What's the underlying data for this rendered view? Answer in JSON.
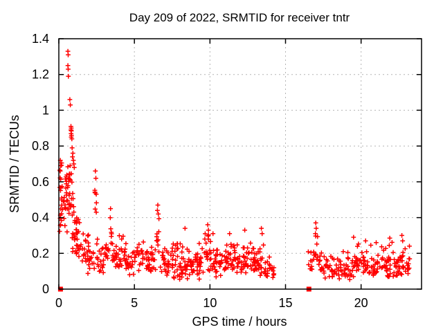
{
  "colors": {
    "marker": "#ff0000",
    "grid": "#b4b4b4",
    "frame": "#000000",
    "text": "#000000",
    "background": "#ffffff"
  },
  "chart_data": {
    "type": "scatter",
    "title": "Day 209 of 2022, SRMTID for receiver tntr",
    "xlabel": "GPS time / hours",
    "ylabel": "SRMTID / TECUs",
    "xlim": [
      0,
      24
    ],
    "ylim": [
      0,
      1.4
    ],
    "xtick_values": [
      0,
      5,
      10,
      15,
      20
    ],
    "xtick_labels": [
      "0",
      "5",
      "10",
      "15",
      "20"
    ],
    "ytick_values": [
      0,
      0.2,
      0.4,
      0.6,
      0.8,
      1.0,
      1.2,
      1.4
    ],
    "ytick_labels": [
      "0",
      "0.2",
      "0.4",
      "0.6",
      "0.8",
      "1",
      "1.2",
      "1.4"
    ],
    "grid": true,
    "grid_style": "dashed",
    "legend": "none",
    "seed": 7,
    "series": [
      {
        "name": "SRMTID",
        "marker": "plus",
        "color": "#ff0000",
        "data_gap_hours": [
          14.3,
          16.5
        ],
        "peak_points": [
          [
            0.6,
            1.33
          ],
          [
            0.62,
            1.31
          ],
          [
            0.6,
            1.25
          ],
          [
            0.62,
            1.23
          ],
          [
            0.63,
            1.19
          ],
          [
            0.73,
            1.06
          ],
          [
            0.76,
            1.03
          ],
          [
            0.8,
            0.91
          ],
          [
            0.82,
            0.9
          ],
          [
            0.8,
            0.89
          ],
          [
            0.83,
            0.885
          ],
          [
            0.81,
            0.87
          ],
          [
            0.84,
            0.86
          ],
          [
            0.82,
            0.85
          ],
          [
            0.86,
            0.84
          ],
          [
            0.88,
            0.79
          ],
          [
            0.93,
            0.76
          ],
          [
            0.9,
            0.74
          ],
          [
            0.96,
            0.72
          ],
          [
            0.99,
            0.7
          ],
          [
            1.02,
            0.68
          ],
          [
            0.1,
            0.72
          ],
          [
            0.12,
            0.69
          ],
          [
            0.09,
            0.66
          ],
          [
            2.42,
            0.66
          ],
          [
            2.45,
            0.62
          ],
          [
            3.42,
            0.45
          ],
          [
            6.55,
            0.47
          ],
          [
            6.52,
            0.44
          ],
          [
            6.58,
            0.42
          ],
          [
            8.35,
            0.34
          ],
          [
            9.85,
            0.36
          ],
          [
            9.9,
            0.33
          ],
          [
            10.2,
            0.31
          ],
          [
            11.3,
            0.31
          ],
          [
            12.3,
            0.33
          ],
          [
            13.4,
            0.34
          ],
          [
            13.45,
            0.31
          ],
          [
            17.0,
            0.37
          ],
          [
            17.03,
            0.34
          ],
          [
            16.98,
            0.31
          ],
          [
            19.5,
            0.29
          ],
          [
            20.3,
            0.27
          ],
          [
            21.0,
            0.26
          ],
          [
            21.9,
            0.285
          ],
          [
            22.7,
            0.3
          ],
          [
            22.75,
            0.27
          ],
          [
            23.2,
            0.24
          ]
        ],
        "band_profile": {
          "columns": [
            "t_start",
            "t_end",
            "count",
            "y_min",
            "y_mode",
            "y_max"
          ],
          "bins": [
            [
              0.05,
              0.3,
              16,
              0.26,
              0.42,
              0.66
            ],
            [
              0.05,
              0.25,
              6,
              0.55,
              0.63,
              0.73
            ],
            [
              0.3,
              0.6,
              20,
              0.3,
              0.48,
              0.68
            ],
            [
              0.5,
              0.85,
              12,
              0.52,
              0.6,
              0.7
            ],
            [
              0.6,
              1.0,
              14,
              0.33,
              0.45,
              0.62
            ],
            [
              0.85,
              1.25,
              16,
              0.2,
              0.3,
              0.5
            ],
            [
              1.0,
              1.5,
              18,
              0.12,
              0.2,
              0.42
            ],
            [
              1.5,
              2.0,
              22,
              0.08,
              0.16,
              0.34
            ],
            [
              2.0,
              2.35,
              12,
              0.08,
              0.15,
              0.3
            ],
            [
              2.36,
              2.5,
              7,
              0.4,
              0.5,
              0.64
            ],
            [
              2.5,
              3.0,
              20,
              0.07,
              0.14,
              0.3
            ],
            [
              3.0,
              3.35,
              12,
              0.1,
              0.17,
              0.33
            ],
            [
              3.3,
              3.55,
              7,
              0.22,
              0.3,
              0.44
            ],
            [
              3.55,
              4.0,
              20,
              0.08,
              0.14,
              0.28
            ],
            [
              4.0,
              4.5,
              20,
              0.09,
              0.16,
              0.33
            ],
            [
              4.5,
              5.0,
              18,
              0.07,
              0.13,
              0.26
            ],
            [
              5.0,
              5.6,
              20,
              0.08,
              0.14,
              0.3
            ],
            [
              5.6,
              6.1,
              18,
              0.06,
              0.12,
              0.24
            ],
            [
              6.1,
              6.45,
              12,
              0.08,
              0.13,
              0.26
            ],
            [
              6.45,
              6.7,
              9,
              0.18,
              0.28,
              0.44
            ],
            [
              6.7,
              7.1,
              14,
              0.07,
              0.13,
              0.26
            ],
            [
              7.1,
              7.6,
              20,
              0.05,
              0.12,
              0.26
            ],
            [
              7.6,
              8.1,
              22,
              0.04,
              0.12,
              0.3
            ],
            [
              8.1,
              8.6,
              22,
              0.04,
              0.11,
              0.3
            ],
            [
              8.6,
              9.1,
              20,
              0.03,
              0.1,
              0.24
            ],
            [
              9.1,
              9.6,
              20,
              0.05,
              0.12,
              0.27
            ],
            [
              9.6,
              10.1,
              22,
              0.07,
              0.15,
              0.33
            ],
            [
              10.1,
              10.6,
              20,
              0.06,
              0.13,
              0.28
            ],
            [
              10.6,
              11.1,
              20,
              0.05,
              0.12,
              0.26
            ],
            [
              11.1,
              11.6,
              20,
              0.07,
              0.14,
              0.3
            ],
            [
              11.6,
              12.1,
              20,
              0.06,
              0.13,
              0.27
            ],
            [
              12.1,
              12.6,
              22,
              0.07,
              0.14,
              0.3
            ],
            [
              12.6,
              13.1,
              20,
              0.06,
              0.13,
              0.28
            ],
            [
              13.1,
              13.6,
              18,
              0.06,
              0.13,
              0.3
            ],
            [
              13.6,
              14.05,
              15,
              0.05,
              0.11,
              0.22
            ],
            [
              14.05,
              14.3,
              7,
              0.05,
              0.1,
              0.17
            ],
            [
              16.5,
              16.85,
              9,
              0.07,
              0.13,
              0.24
            ],
            [
              16.85,
              17.15,
              10,
              0.12,
              0.2,
              0.34
            ],
            [
              17.15,
              17.6,
              15,
              0.06,
              0.12,
              0.22
            ],
            [
              17.6,
              18.2,
              20,
              0.04,
              0.1,
              0.2
            ],
            [
              18.2,
              18.8,
              20,
              0.04,
              0.1,
              0.2
            ],
            [
              18.8,
              19.4,
              20,
              0.05,
              0.11,
              0.22
            ],
            [
              19.4,
              20.0,
              22,
              0.05,
              0.12,
              0.27
            ],
            [
              20.0,
              20.6,
              20,
              0.05,
              0.11,
              0.24
            ],
            [
              20.6,
              21.2,
              20,
              0.04,
              0.1,
              0.25
            ],
            [
              21.2,
              21.8,
              20,
              0.06,
              0.12,
              0.25
            ],
            [
              21.8,
              22.4,
              22,
              0.05,
              0.12,
              0.27
            ],
            [
              22.4,
              23.0,
              22,
              0.06,
              0.13,
              0.28
            ],
            [
              23.0,
              23.3,
              10,
              0.08,
              0.13,
              0.23
            ]
          ]
        }
      },
      {
        "name": "zero line markers",
        "marker": "filled-square",
        "color": "#ff0000",
        "points": [
          [
            0.11,
            0
          ],
          [
            16.55,
            0
          ]
        ]
      }
    ]
  }
}
